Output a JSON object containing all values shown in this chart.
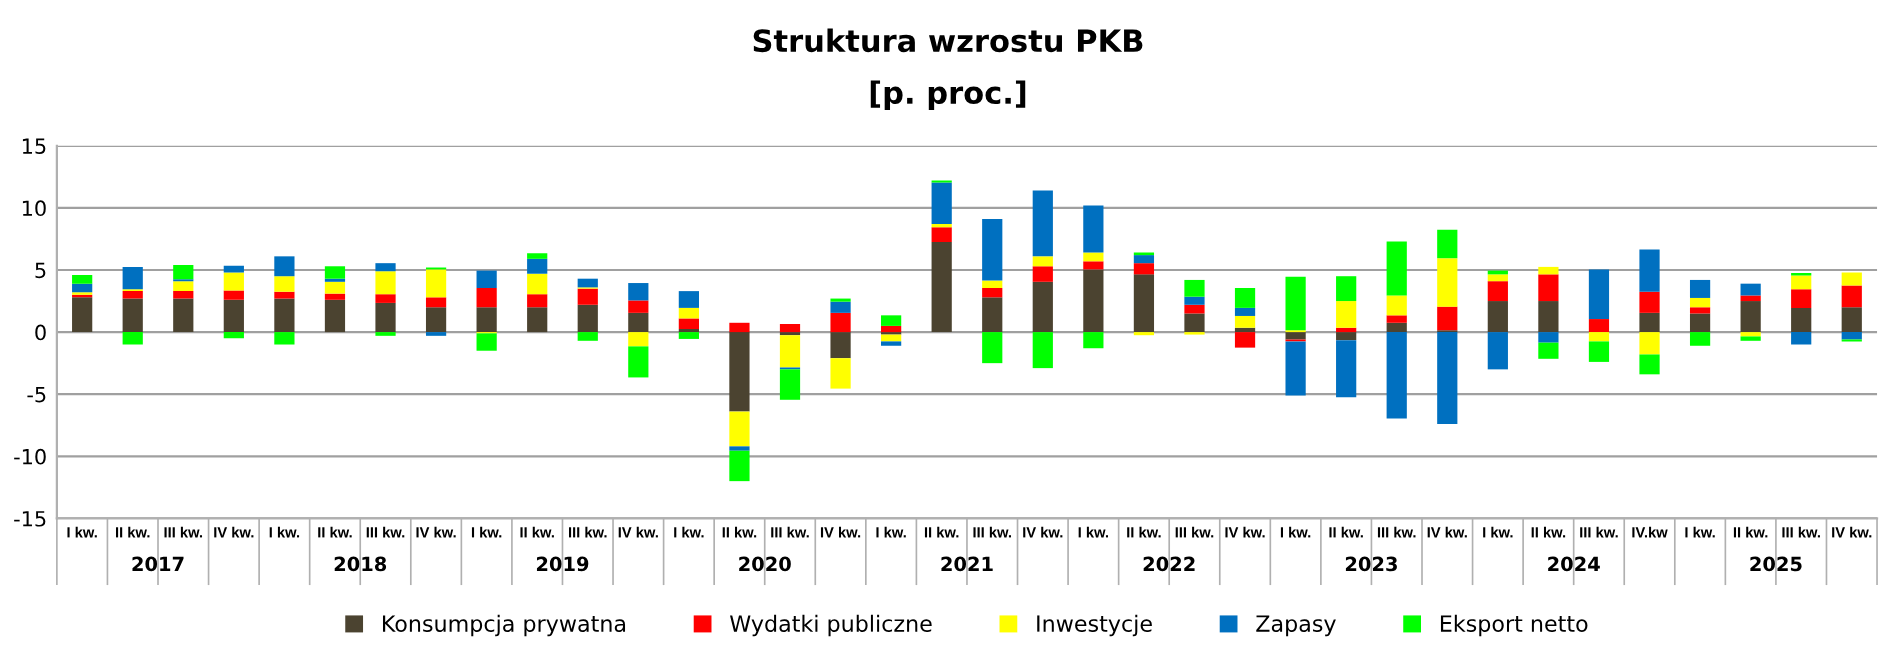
{
  "chart_data": {
    "type": "bar",
    "stacked": true,
    "title": "Struktura wzrostu PKB",
    "subtitle": "[p. proc.]",
    "categories": [
      "I kw.",
      "II kw.",
      "III kw.",
      "IV kw.",
      "I kw.",
      "II kw.",
      "III kw.",
      "IV kw.",
      "I kw.",
      "II kw.",
      "III kw.",
      "IV kw.",
      "I kw.",
      "II kw.",
      "III kw.",
      "IV kw.",
      "I kw.",
      "II kw.",
      "III kw.",
      "IV kw.",
      "I kw.",
      "II kw.",
      "III kw.",
      "IV kw.",
      "I kw.",
      "II kw.",
      "III kw.",
      "IV kw.",
      "I kw.",
      "II kw.",
      "III kw.",
      "IV.kw",
      "I kw.",
      "II kw.",
      "III kw.",
      "IV kw."
    ],
    "annotations": [
      "2017",
      "2018",
      "2019",
      "2020",
      "2021",
      "2022",
      "2023",
      "2024",
      "2025"
    ],
    "series": [
      {
        "name": "Konsumpcja prywatna",
        "color": "#4b4330",
        "values": [
          2.8,
          2.7,
          2.7,
          2.6,
          2.7,
          2.6,
          2.35,
          2.0,
          2.0,
          2.0,
          2.2,
          1.55,
          0.25,
          -6.4,
          -0.25,
          -2.1,
          -0.2,
          7.25,
          2.8,
          4.05,
          5.05,
          4.65,
          1.5,
          0.35,
          -0.6,
          -0.65,
          0.75,
          0.15,
          2.5,
          2.5,
          0,
          1.55,
          1.5,
          2.5,
          1.95,
          2.0
        ]
      },
      {
        "name": "Wydatki publiczne",
        "color": "#ff0000",
        "values": [
          0.2,
          0.6,
          0.6,
          0.75,
          0.55,
          0.5,
          0.7,
          0.8,
          1.55,
          1.05,
          1.3,
          1.0,
          0.85,
          0.75,
          0.65,
          1.55,
          0.5,
          1.2,
          0.75,
          1.25,
          0.65,
          0.9,
          0.7,
          -1.25,
          -0.15,
          0.35,
          0.6,
          1.9,
          1.6,
          2.15,
          1.05,
          1.7,
          0.5,
          0.45,
          1.5,
          1.75
        ]
      },
      {
        "name": "Inwestycje",
        "color": "#ffff00",
        "values": [
          0.2,
          0.15,
          0.8,
          1.45,
          1.25,
          0.95,
          1.85,
          2.25,
          -0.1,
          1.65,
          0.1,
          -1.15,
          0.85,
          -2.8,
          -2.6,
          -2.45,
          -0.55,
          0.25,
          0.6,
          0.8,
          0.7,
          -0.25,
          -0.2,
          0.95,
          0.15,
          2.15,
          1.6,
          3.9,
          0.55,
          0.6,
          -0.75,
          -1.8,
          0.75,
          -0.35,
          1.1,
          1.05
        ]
      },
      {
        "name": "Zapasy",
        "color": "#0070c0",
        "values": [
          0.7,
          1.8,
          0.15,
          0.55,
          1.6,
          0.25,
          0.65,
          -0.3,
          1.4,
          1.2,
          0.7,
          1.4,
          1.35,
          -0.35,
          -0.15,
          0.9,
          -0.35,
          3.35,
          4.95,
          5.3,
          3.8,
          0.65,
          0.65,
          0.65,
          -4.35,
          -4.6,
          -6.95,
          -7.4,
          -3.0,
          -0.85,
          4.0,
          3.4,
          1.45,
          0.95,
          -1.0,
          -0.6
        ]
      },
      {
        "name": "Eksport netto",
        "color": "#00ff00",
        "values": [
          0.7,
          -1.0,
          1.15,
          -0.5,
          -1.0,
          1.0,
          -0.3,
          0.15,
          -1.4,
          0.45,
          -0.7,
          -2.5,
          -0.55,
          -2.45,
          -2.45,
          0.25,
          0.85,
          0.15,
          -2.5,
          -2.9,
          -1.3,
          0.2,
          1.35,
          1.6,
          4.3,
          2.0,
          4.35,
          2.3,
          0.3,
          -1.3,
          -1.65,
          -1.6,
          -1.1,
          -0.35,
          0.2,
          -0.15
        ]
      }
    ],
    "ylim": [
      -15,
      15
    ],
    "yticks": [
      -15,
      -10,
      -5,
      0,
      5,
      10,
      15
    ],
    "grid": "y",
    "legend": "bottom"
  }
}
